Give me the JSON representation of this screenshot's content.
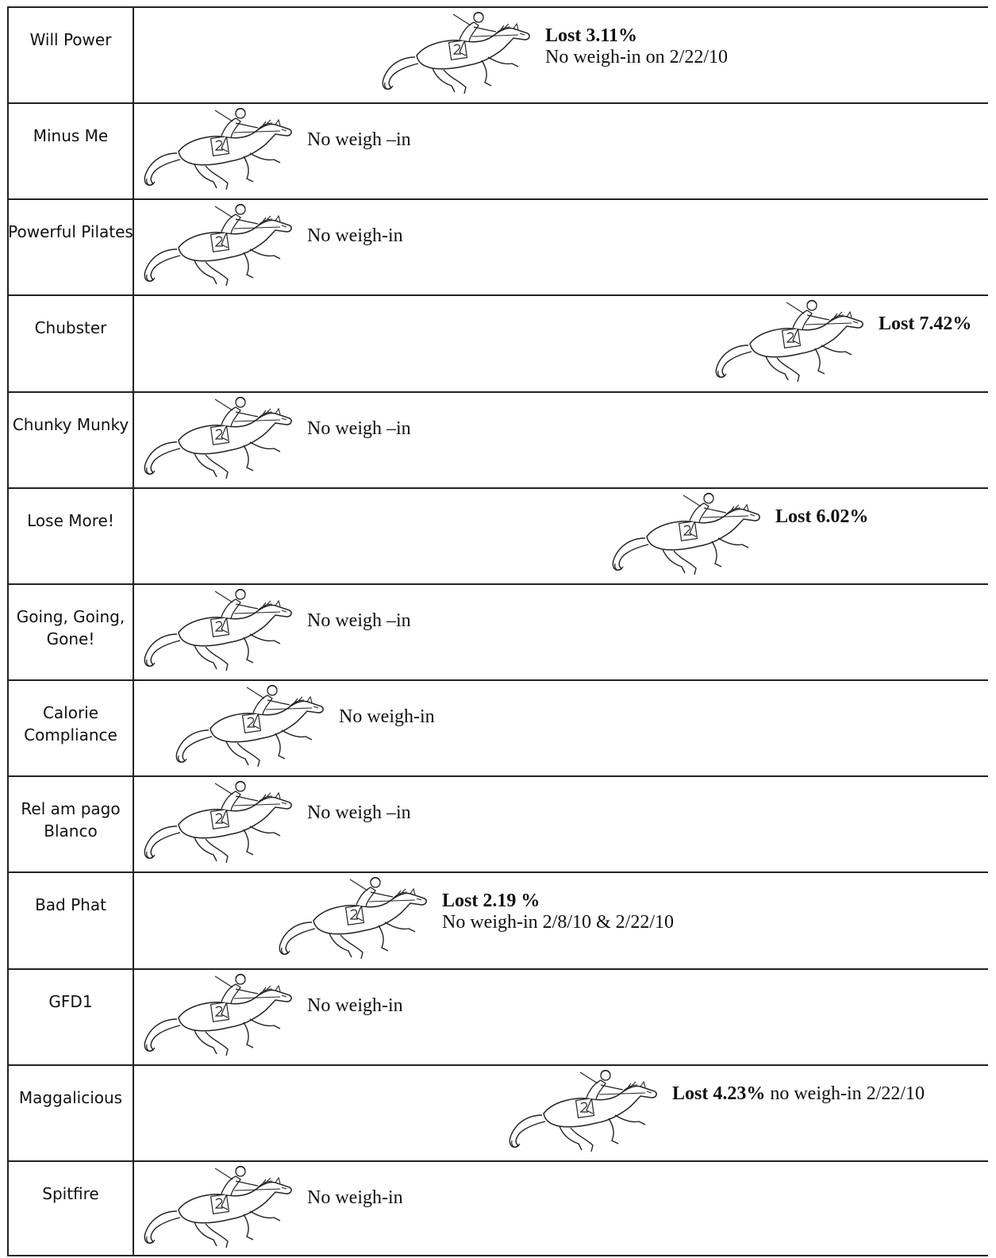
{
  "rows": [
    {
      "team": "Will Power",
      "lost": "Lost 3.11%",
      "note": "No weigh-in on 2/22/10",
      "progress": 0.3
    },
    {
      "team": "Minus Me",
      "lost": "",
      "note": "No weigh –in",
      "progress": 0
    },
    {
      "team": "Powerful Pilates",
      "lost": "",
      "note": "No weigh-in",
      "progress": 0
    },
    {
      "team": "Chubster",
      "lost": "Lost 7.42%",
      "note": "",
      "progress": 0.72
    },
    {
      "team": "Chunky Munky",
      "lost": "",
      "note": "No weigh –in",
      "progress": 0
    },
    {
      "team": "Lose More!",
      "lost": "Lost 6.02%",
      "note": "",
      "progress": 0.59
    },
    {
      "team": "Going, Going, Gone!",
      "lost": "",
      "note": "No weigh –in",
      "progress": 0
    },
    {
      "team": "Calorie Compliance",
      "lost": "",
      "note": "No weigh-in",
      "progress": 0.04
    },
    {
      "team": "Rel am pago Blanco",
      "lost": "",
      "note": "No weigh –in",
      "progress": 0
    },
    {
      "team": "Bad Phat",
      "lost": "Lost 2.19 %",
      "note": "No weigh-in 2/8/10 & 2/22/10",
      "progress": 0.17
    },
    {
      "team": "GFD1",
      "lost": "",
      "note": "No weigh-in",
      "progress": 0
    },
    {
      "team": "Maggalicious",
      "lost": "Lost 4.23%",
      "note": " no weigh-in 2/22/10",
      "progress": 0.46
    },
    {
      "team": "Spitfire",
      "lost": "",
      "note": "No weigh-in",
      "progress": 0
    }
  ]
}
